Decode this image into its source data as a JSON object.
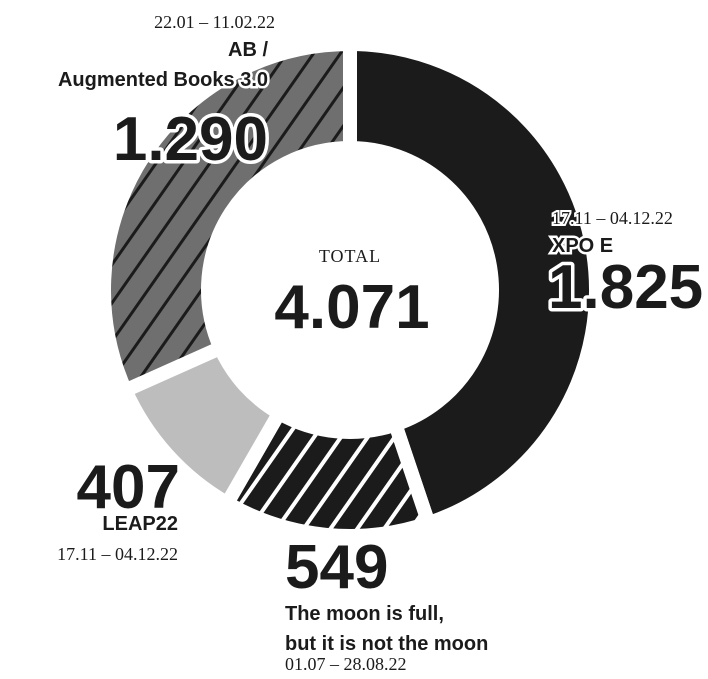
{
  "chart_data": {
    "type": "donut",
    "categories": [
      [
        "XPO E"
      ],
      [
        "The moon is full,",
        "but it is not the moon"
      ],
      [
        "LEAP22"
      ],
      [
        "AB /",
        "Augmented Books 3.0"
      ]
    ],
    "dates": [
      "17.11 – 04.12.22",
      "01.07 – 28.08.22",
      "17.11 – 04.12.22",
      "22.01 – 11.02.22"
    ],
    "values": [
      1825,
      549,
      407,
      1290
    ],
    "value_labels": [
      "1.825",
      "549",
      "407",
      "1.290"
    ],
    "colors": [
      "#1b1b1b",
      "#6f6f6f",
      "#bdbdbd",
      "#1b1b1b"
    ],
    "hatch": [
      false,
      true,
      false,
      true
    ],
    "total": {
      "label": "TOTAL",
      "value": 4071,
      "value_label": "4.071"
    }
  }
}
